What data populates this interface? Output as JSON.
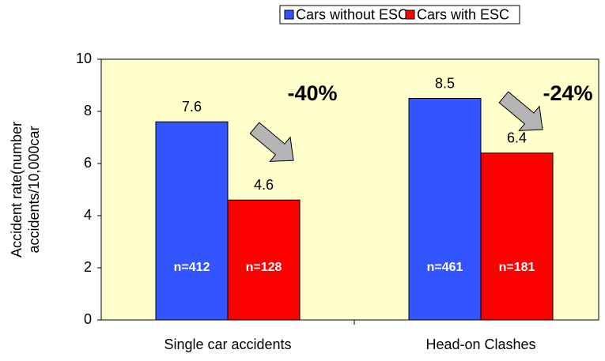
{
  "chart_data": {
    "type": "bar",
    "categories": [
      "Single car accidents",
      "Head-on Clashes"
    ],
    "series": [
      {
        "name": "Cars without ESC",
        "color": "#3355ff",
        "values": [
          7.6,
          8.5
        ],
        "n_labels": [
          "n=412",
          "n=461"
        ]
      },
      {
        "name": "Cars with ESC",
        "color": "#ff0000",
        "values": [
          4.6,
          6.4
        ],
        "n_labels": [
          "n=128",
          "n=181"
        ]
      }
    ],
    "y_label": [
      "Accident rate(number",
      "accidents/10,000car"
    ],
    "annotations": [
      "-40%",
      "-24%"
    ],
    "ylim": [
      0,
      10
    ],
    "yticks": [
      0,
      2,
      4,
      6,
      8,
      10
    ],
    "grid": false,
    "legend": "top"
  }
}
